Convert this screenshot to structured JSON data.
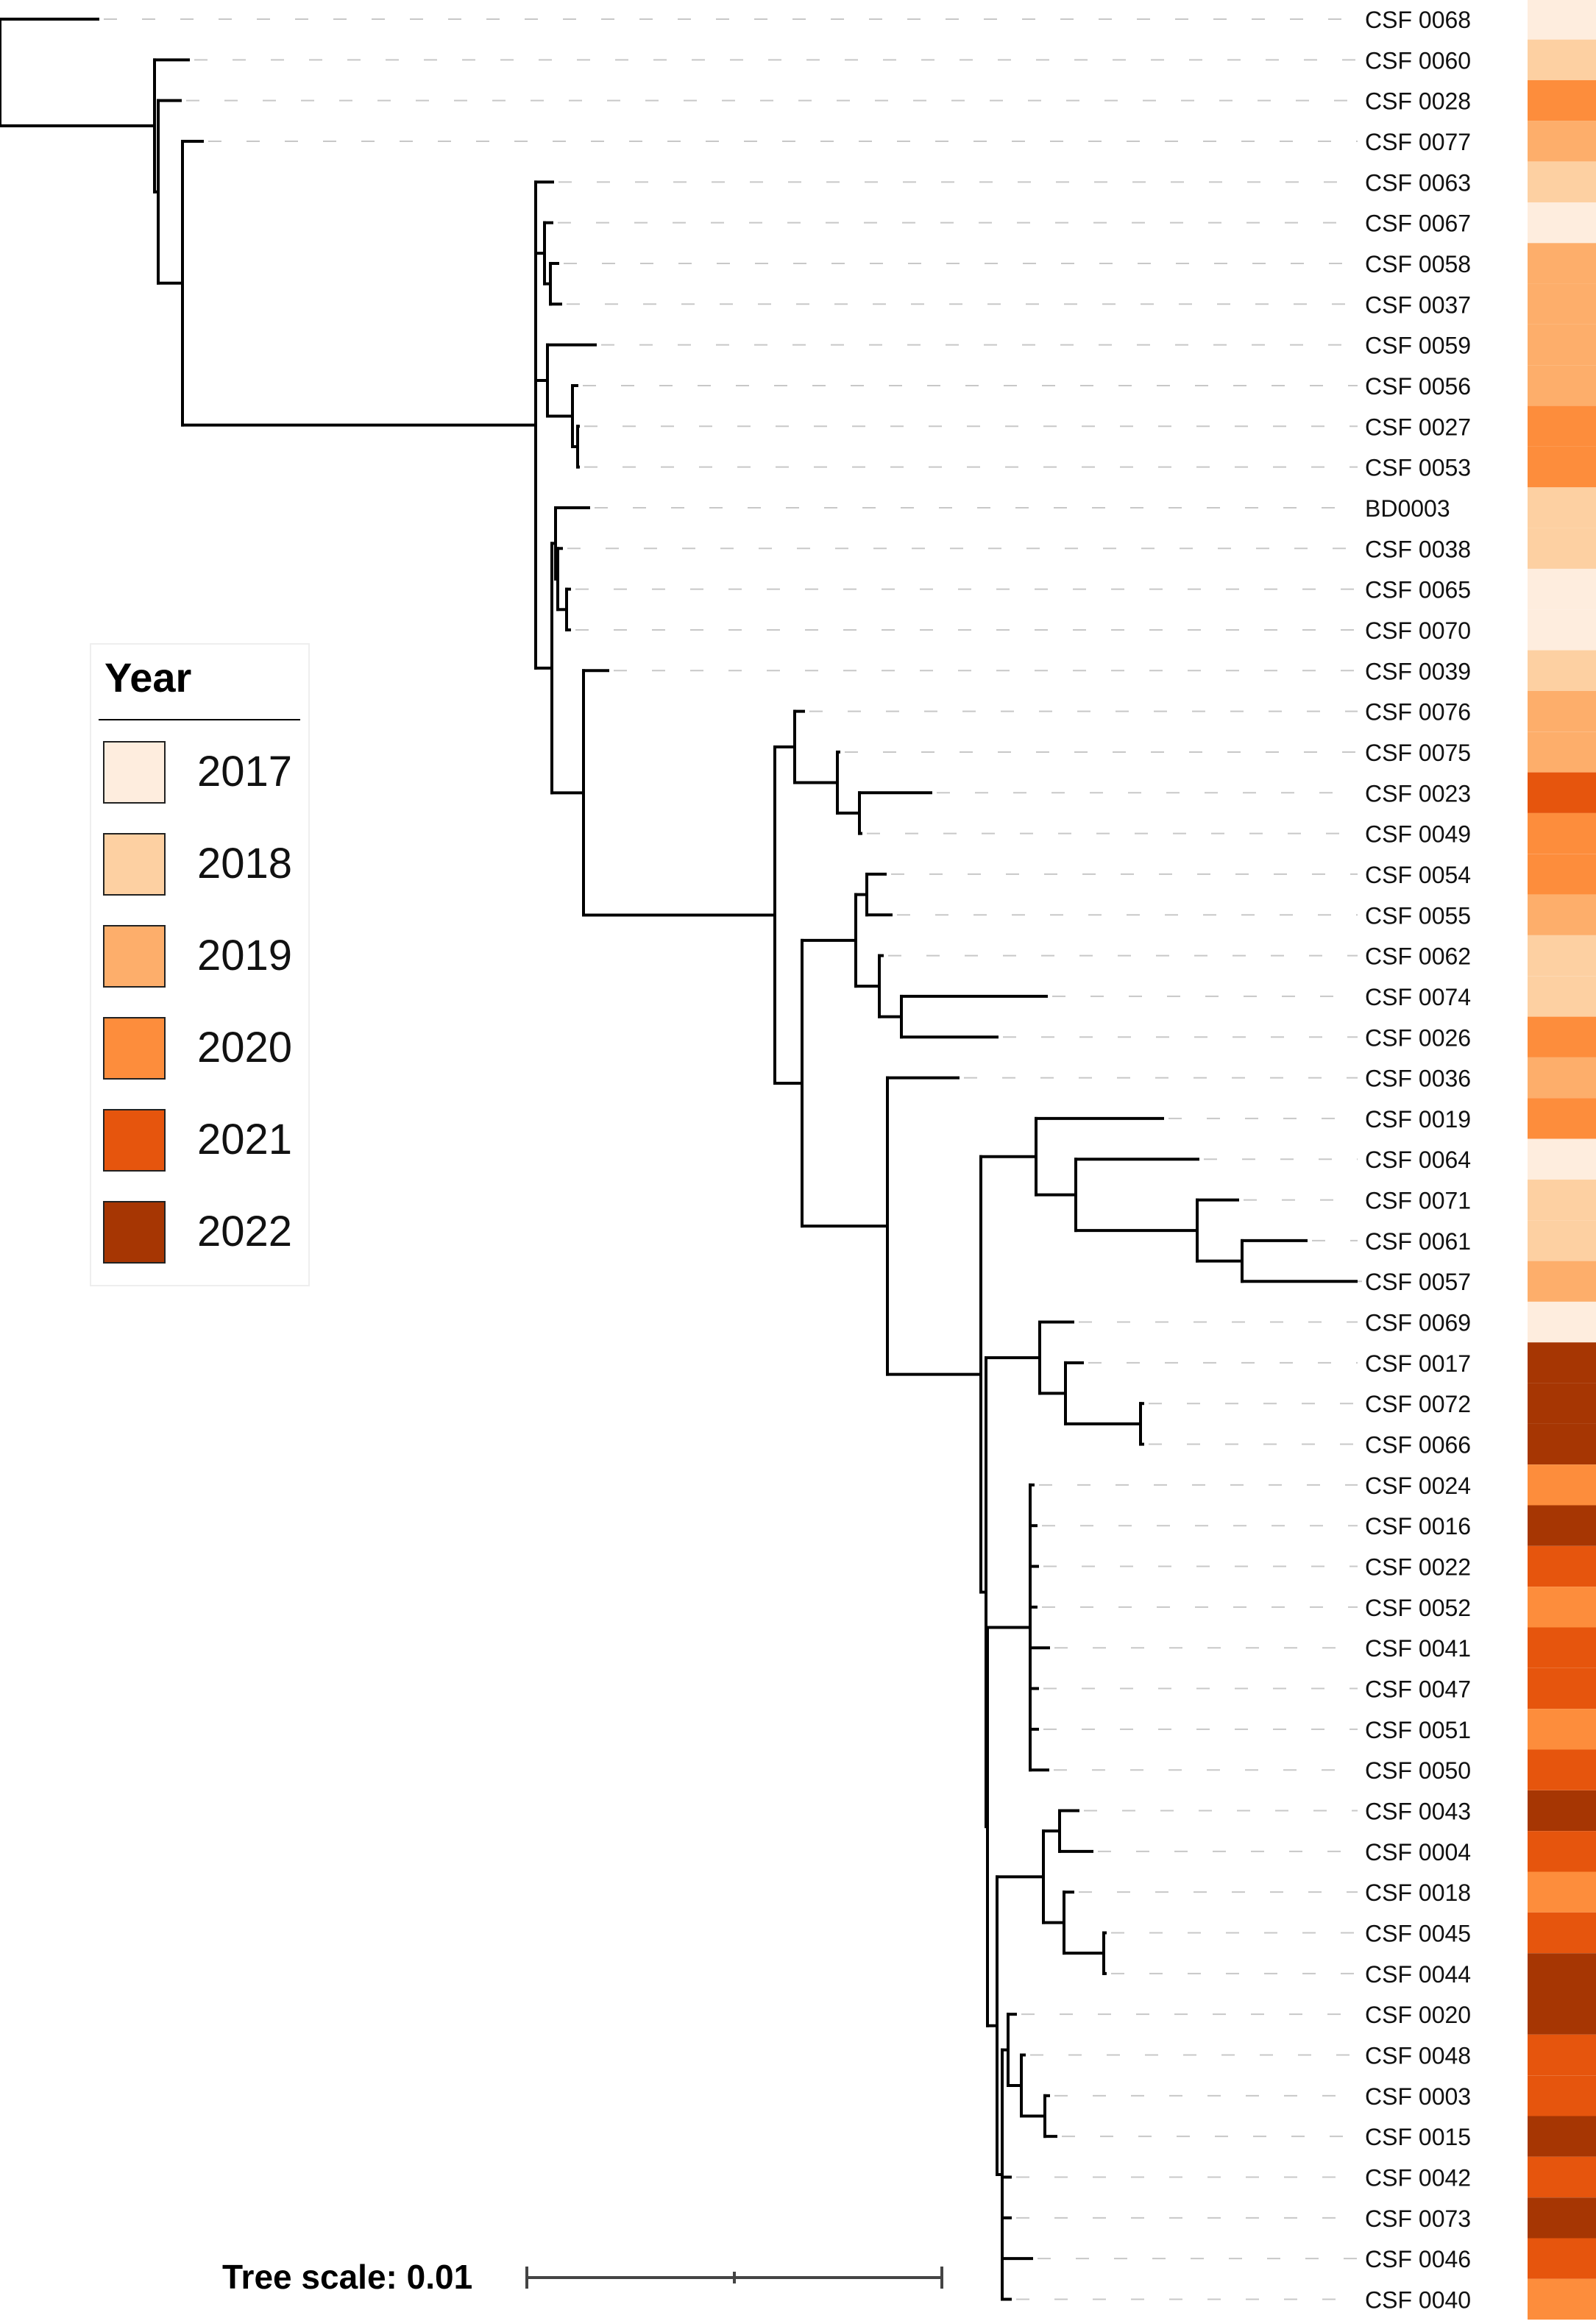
{
  "legend": {
    "title": "Year",
    "items": [
      {
        "label": "2017",
        "color": "#FEEDDE"
      },
      {
        "label": "2018",
        "color": "#FDD0A2"
      },
      {
        "label": "2019",
        "color": "#FDAE6B"
      },
      {
        "label": "2020",
        "color": "#FD8D3C"
      },
      {
        "label": "2021",
        "color": "#E6550D"
      },
      {
        "label": "2022",
        "color": "#A63603"
      }
    ]
  },
  "scale": {
    "label": "Tree scale: 0.01"
  },
  "leaves": [
    {
      "label": "CSF 0068",
      "year": "2017"
    },
    {
      "label": "CSF 0060",
      "year": "2018"
    },
    {
      "label": "CSF 0028",
      "year": "2020"
    },
    {
      "label": "CSF 0077",
      "year": "2019"
    },
    {
      "label": "CSF 0063",
      "year": "2018"
    },
    {
      "label": "CSF 0067",
      "year": "2017"
    },
    {
      "label": "CSF 0058",
      "year": "2019"
    },
    {
      "label": "CSF 0037",
      "year": "2019"
    },
    {
      "label": "CSF 0059",
      "year": "2019"
    },
    {
      "label": "CSF 0056",
      "year": "2019"
    },
    {
      "label": "CSF 0027",
      "year": "2020"
    },
    {
      "label": "CSF 0053",
      "year": "2020"
    },
    {
      "label": "BD0003",
      "year": "2018"
    },
    {
      "label": "CSF 0038",
      "year": "2018"
    },
    {
      "label": "CSF 0065",
      "year": "2017"
    },
    {
      "label": "CSF 0070",
      "year": "2017"
    },
    {
      "label": "CSF 0039",
      "year": "2018"
    },
    {
      "label": "CSF 0076",
      "year": "2019"
    },
    {
      "label": "CSF 0075",
      "year": "2019"
    },
    {
      "label": "CSF 0023",
      "year": "2021"
    },
    {
      "label": "CSF 0049",
      "year": "2020"
    },
    {
      "label": "CSF 0054",
      "year": "2020"
    },
    {
      "label": "CSF 0055",
      "year": "2019"
    },
    {
      "label": "CSF 0062",
      "year": "2018"
    },
    {
      "label": "CSF 0074",
      "year": "2018"
    },
    {
      "label": "CSF 0026",
      "year": "2020"
    },
    {
      "label": "CSF 0036",
      "year": "2019"
    },
    {
      "label": "CSF 0019",
      "year": "2020"
    },
    {
      "label": "CSF 0064",
      "year": "2017"
    },
    {
      "label": "CSF 0071",
      "year": "2018"
    },
    {
      "label": "CSF 0061",
      "year": "2018"
    },
    {
      "label": "CSF 0057",
      "year": "2019"
    },
    {
      "label": "CSF 0069",
      "year": "2017"
    },
    {
      "label": "CSF 0017",
      "year": "2022"
    },
    {
      "label": "CSF 0072",
      "year": "2022"
    },
    {
      "label": "CSF 0066",
      "year": "2022"
    },
    {
      "label": "CSF 0024",
      "year": "2020"
    },
    {
      "label": "CSF 0016",
      "year": "2022"
    },
    {
      "label": "CSF 0022",
      "year": "2021"
    },
    {
      "label": "CSF 0052",
      "year": "2020"
    },
    {
      "label": "CSF 0041",
      "year": "2021"
    },
    {
      "label": "CSF 0047",
      "year": "2021"
    },
    {
      "label": "CSF 0051",
      "year": "2020"
    },
    {
      "label": "CSF 0050",
      "year": "2021"
    },
    {
      "label": "CSF 0043",
      "year": "2022"
    },
    {
      "label": "CSF 0004",
      "year": "2021"
    },
    {
      "label": "CSF 0018",
      "year": "2020"
    },
    {
      "label": "CSF 0045",
      "year": "2021"
    },
    {
      "label": "CSF 0044",
      "year": "2022"
    },
    {
      "label": "CSF 0020",
      "year": "2022"
    },
    {
      "label": "CSF 0048",
      "year": "2021"
    },
    {
      "label": "CSF 0003",
      "year": "2021"
    },
    {
      "label": "CSF 0015",
      "year": "2022"
    },
    {
      "label": "CSF 0042",
      "year": "2021"
    },
    {
      "label": "CSF 0073",
      "year": "2022"
    },
    {
      "label": "CSF 0046",
      "year": "2021"
    },
    {
      "label": "CSF 0040",
      "year": "2020"
    }
  ]
}
